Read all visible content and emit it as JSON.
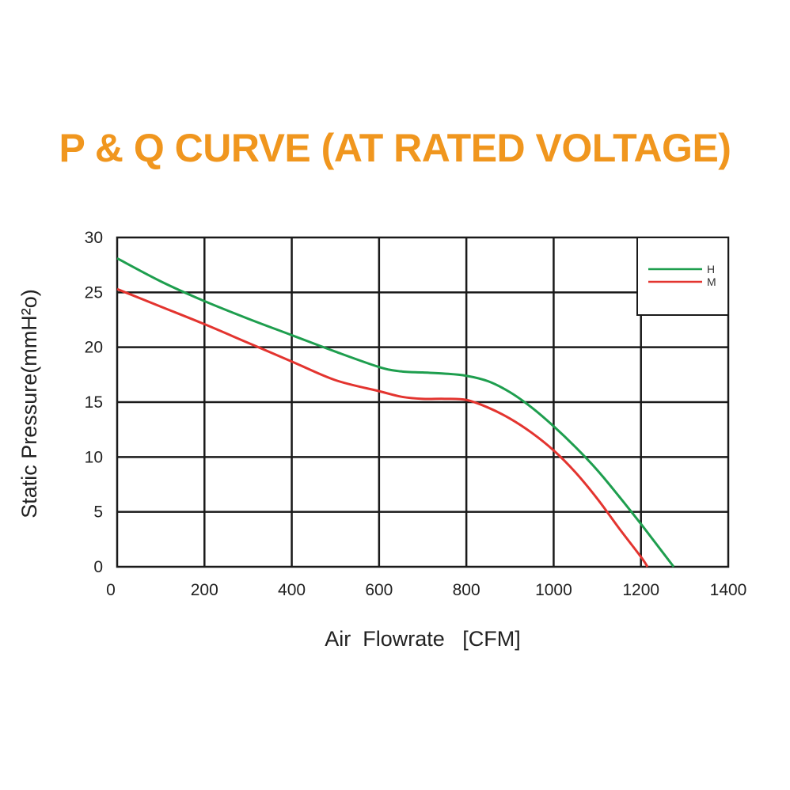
{
  "colors": {
    "title": "#f0961e",
    "series_h": "#1e9e4e",
    "series_m": "#e3342f",
    "grid": "#1a1a1a"
  },
  "chart_data": {
    "type": "line",
    "title": "P & Q CURVE (AT RATED VOLTAGE)",
    "xlabel": "Air  Flowrate   [CFM]",
    "ylabel": "Static Pressure(mmH²o)",
    "xlim": [
      0,
      1400
    ],
    "ylim": [
      0,
      30
    ],
    "x_ticks": [
      "0",
      "200",
      "400",
      "600",
      "800",
      "1000",
      "1200",
      "1400"
    ],
    "y_ticks": [
      "0",
      "5",
      "10",
      "15",
      "20",
      "25",
      "30"
    ],
    "grid": true,
    "legend_position": "top-right",
    "series": [
      {
        "name": "H",
        "color": "#1e9e4e",
        "x": [
          0,
          100,
          200,
          300,
          400,
          500,
          600,
          650,
          700,
          750,
          800,
          850,
          900,
          950,
          1000,
          1050,
          1100,
          1150,
          1200,
          1250,
          1275
        ],
        "y": [
          28.1,
          26.0,
          24.2,
          22.6,
          21.1,
          19.6,
          18.2,
          17.8,
          17.7,
          17.6,
          17.4,
          16.9,
          15.9,
          14.5,
          12.8,
          10.9,
          8.8,
          6.4,
          3.9,
          1.3,
          0
        ]
      },
      {
        "name": "M",
        "color": "#e3342f",
        "x": [
          0,
          100,
          200,
          300,
          400,
          500,
          600,
          650,
          700,
          750,
          800,
          850,
          900,
          950,
          1000,
          1050,
          1100,
          1150,
          1200,
          1215
        ],
        "y": [
          25.3,
          23.7,
          22.1,
          20.4,
          18.7,
          17.0,
          16.0,
          15.5,
          15.3,
          15.3,
          15.2,
          14.5,
          13.5,
          12.2,
          10.6,
          8.6,
          6.2,
          3.5,
          0.9,
          0
        ]
      }
    ]
  }
}
